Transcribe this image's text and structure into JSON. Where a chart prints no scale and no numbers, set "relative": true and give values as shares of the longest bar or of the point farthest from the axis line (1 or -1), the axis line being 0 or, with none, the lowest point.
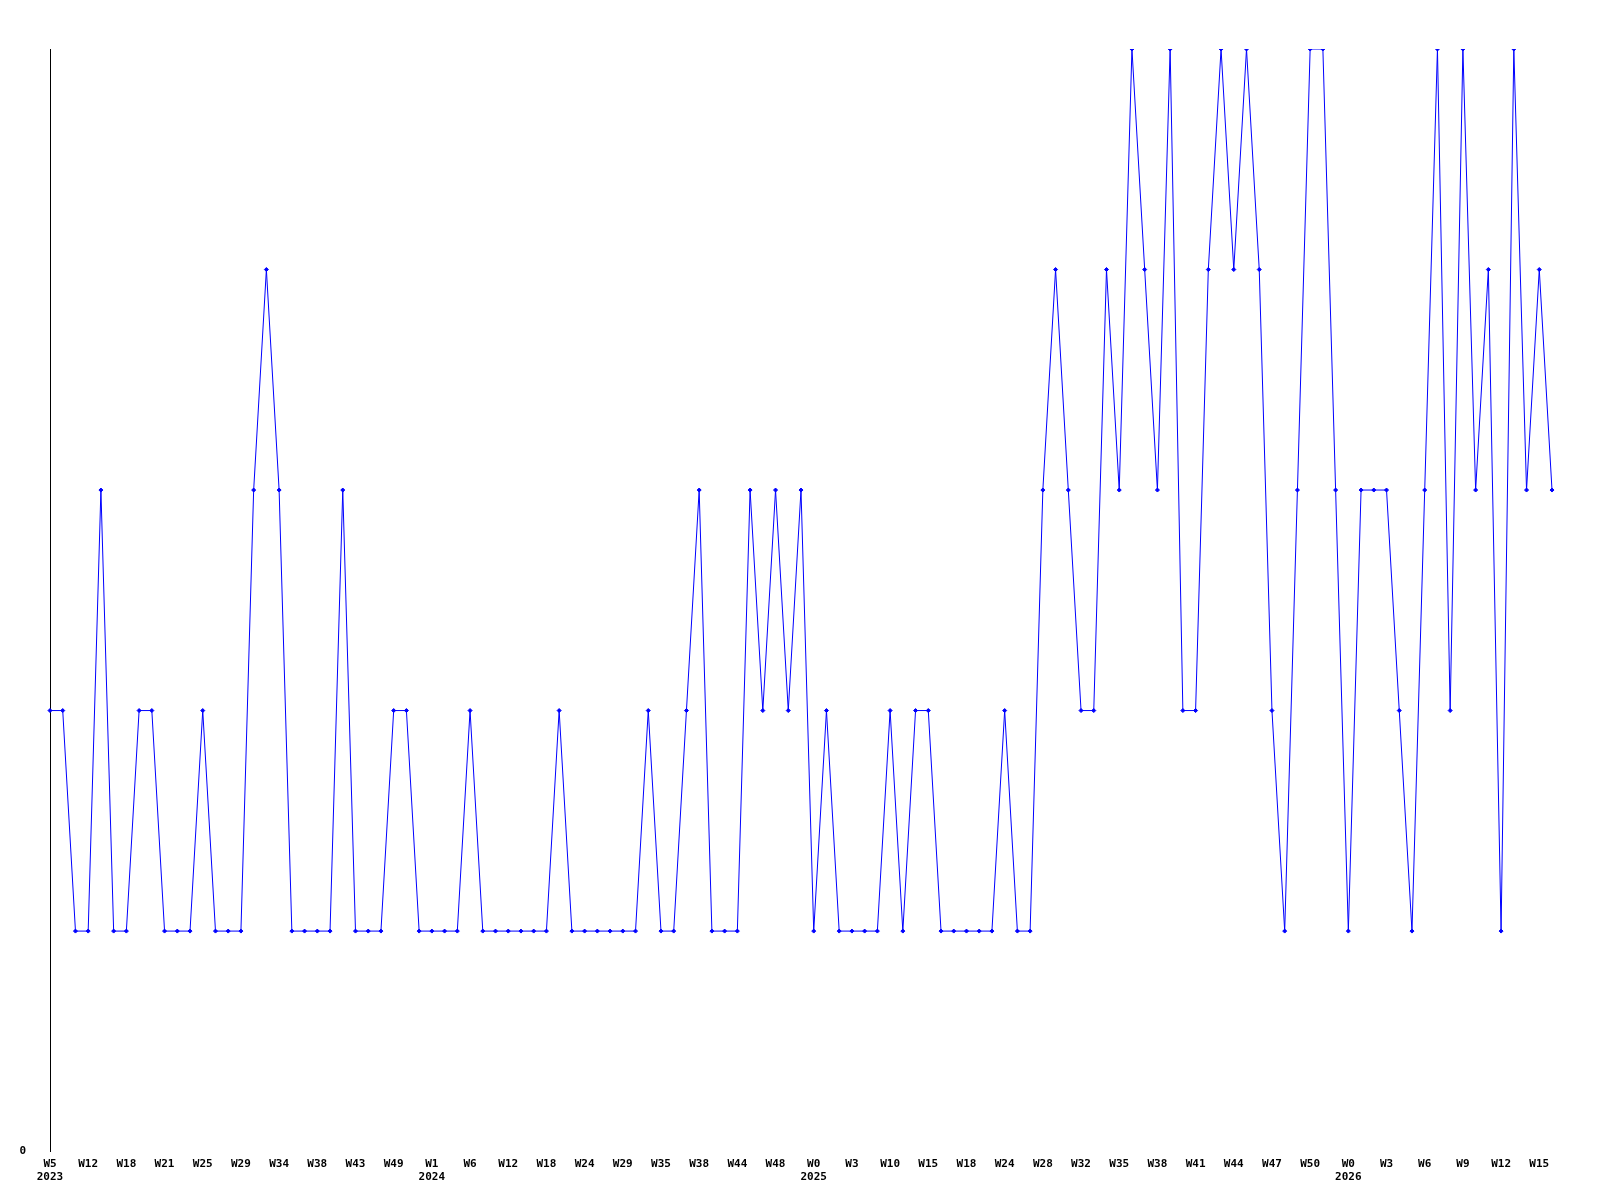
{
  "chart_data": {
    "type": "line",
    "relative": true,
    "marker": "diamond",
    "color": "#0000ff",
    "annotations": [
      "0"
    ],
    "categories": [
      "W5\n2023",
      null,
      null,
      "W12",
      null,
      null,
      "W18",
      null,
      null,
      "W21",
      null,
      null,
      "W25",
      null,
      null,
      "W29",
      null,
      null,
      "W34",
      null,
      null,
      "W38",
      null,
      null,
      "W43",
      null,
      null,
      "W49",
      null,
      null,
      "W1\n2024",
      null,
      null,
      "W6",
      null,
      null,
      "W12",
      null,
      null,
      "W18",
      null,
      null,
      "W24",
      null,
      null,
      "W29",
      null,
      null,
      "W35",
      null,
      null,
      "W38",
      null,
      null,
      "W44",
      null,
      null,
      "W48",
      null,
      null,
      "W0\n2025",
      null,
      null,
      "W3",
      null,
      null,
      "W10",
      null,
      null,
      "W15",
      null,
      null,
      "W18",
      null,
      null,
      "W24",
      null,
      null,
      "W28",
      null,
      null,
      "W32",
      null,
      null,
      "W35",
      null,
      null,
      "W38",
      null,
      null,
      "W41",
      null,
      null,
      "W44",
      null,
      null,
      "W47",
      null,
      null,
      "W50",
      null,
      null,
      "W0\n2026",
      null,
      null,
      "W3",
      null,
      null,
      "W6",
      null,
      null,
      "W9",
      null,
      null,
      "W12",
      null,
      null,
      "W15",
      null
    ],
    "values": [
      0.4,
      0.4,
      0.2,
      0.2,
      0.6,
      0.2,
      0.2,
      0.4,
      0.4,
      0.2,
      0.2,
      0.2,
      0.4,
      0.2,
      0.2,
      0.2,
      0.6,
      0.8,
      0.6,
      0.2,
      0.2,
      0.2,
      0.2,
      0.6,
      0.2,
      0.2,
      0.2,
      0.4,
      0.4,
      0.2,
      0.2,
      0.2,
      0.2,
      0.4,
      0.2,
      0.2,
      0.2,
      0.2,
      0.2,
      0.2,
      0.4,
      0.2,
      0.2,
      0.2,
      0.2,
      0.2,
      0.2,
      0.4,
      0.2,
      0.2,
      0.4,
      0.6,
      0.2,
      0.2,
      0.2,
      0.6,
      0.4,
      0.6,
      0.4,
      0.6,
      0.2,
      0.4,
      0.2,
      0.2,
      0.2,
      0.2,
      0.4,
      0.2,
      0.4,
      0.4,
      0.2,
      0.2,
      0.2,
      0.2,
      0.2,
      0.4,
      0.2,
      0.2,
      0.6,
      0.8,
      0.6,
      0.4,
      0.4,
      0.8,
      0.6,
      1,
      0.8,
      0.6,
      1,
      0.4,
      0.4,
      0.8,
      1,
      0.8,
      1,
      0.8,
      0.4,
      0.2,
      0.6,
      1,
      1,
      0.6,
      0.2,
      0.6,
      0.6,
      0.6,
      0.4,
      0.2,
      0.6,
      1,
      0.4,
      1,
      0.6,
      0.8,
      0.2,
      1,
      0.6,
      0.8,
      0.6
    ]
  }
}
